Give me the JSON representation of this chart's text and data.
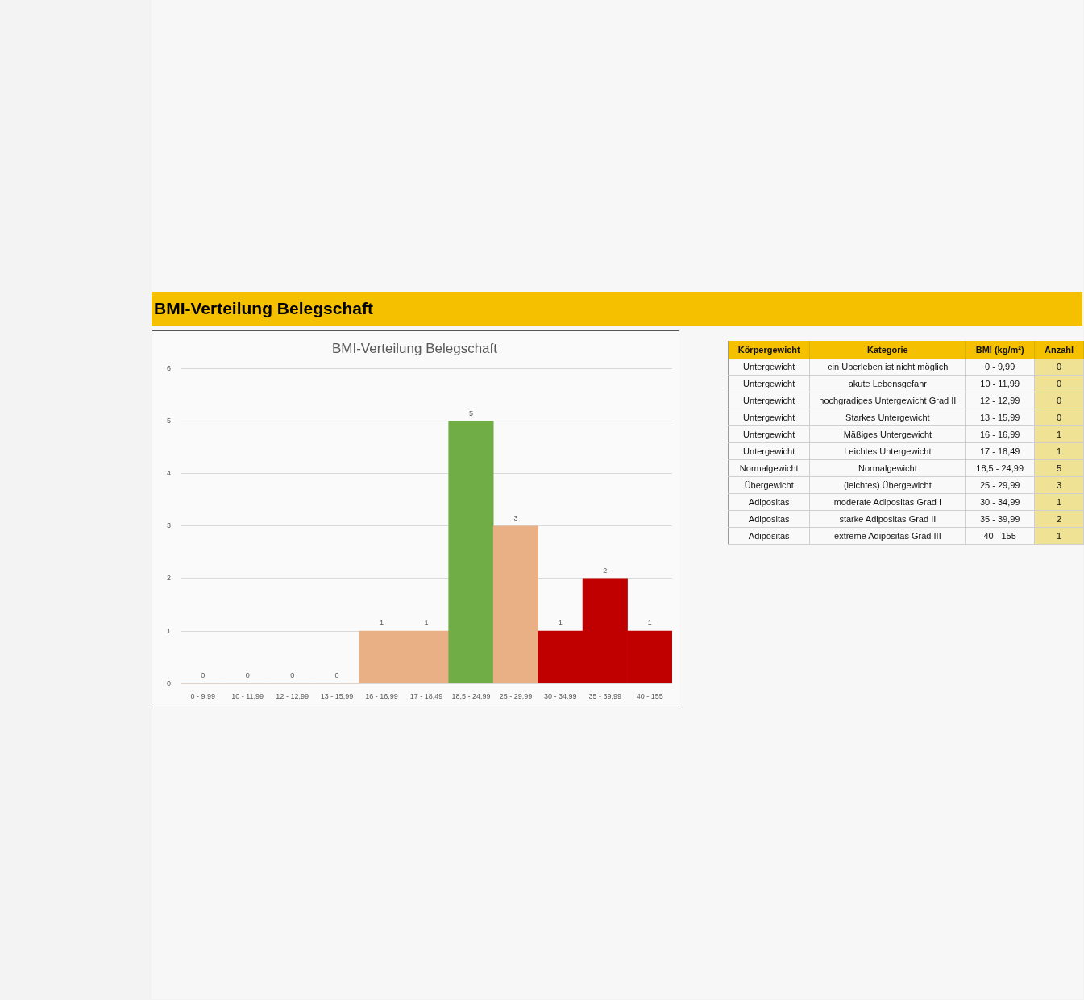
{
  "chart_data": [
    {
      "type": "other",
      "title": "BMI-Verteilung Belegschaft"
    },
    {
      "type": "bar",
      "title": "BMI-Verteilung Belegschaft",
      "categories": [
        "0 - 9,99",
        "10 - 11,99",
        "12 - 12,99",
        "13 - 15,99",
        "16 - 16,99",
        "17 - 18,49",
        "18,5 - 24,99",
        "25 - 29,99",
        "30 - 34,99",
        "35 - 39,99",
        "40 - 155"
      ],
      "values": [
        0,
        0,
        0,
        0,
        1,
        1,
        5,
        3,
        1,
        2,
        1
      ],
      "colors": [
        "#eab085",
        "#eab085",
        "#eab085",
        "#eab085",
        "#eab085",
        "#eab085",
        "#70ad47",
        "#eab085",
        "#c00000",
        "#c00000",
        "#c00000"
      ],
      "ylim": [
        0,
        6
      ],
      "yticks": [
        0,
        1,
        2,
        3,
        4,
        5,
        6
      ],
      "grid": "y",
      "data_labels": true
    },
    {
      "type": "other",
      "categories": [
        "Körpergewicht",
        "Kategorie",
        "BMI (kg/m²)",
        "Anzahl"
      ],
      "annotations": [
        "Untergewicht",
        "ein Überleben ist nicht möglich",
        "0 - 9,99",
        "0",
        "Untergewicht",
        "akute Lebensgefahr",
        "10 - 11,99",
        "0",
        "Untergewicht",
        "hochgradiges Untergewicht Grad II",
        "12 - 12,99",
        "0",
        "Untergewicht",
        "Starkes Untergewicht",
        "13 - 15,99",
        "0",
        "Untergewicht",
        "Mäßiges Untergewicht",
        "16 - 16,99",
        "1",
        "Untergewicht",
        "Leichtes Untergewicht",
        "17 - 18,49",
        "1",
        "Normalgewicht",
        "Normalgewicht",
        "18,5 - 24,99",
        "5",
        "Übergewicht",
        "(leichtes) Übergewicht",
        "25 - 29,99",
        "3",
        "Adipositas",
        "moderate Adipositas Grad I",
        "30 - 34,99",
        "1",
        "Adipositas",
        "starke Adipositas Grad II",
        "35 - 39,99",
        "2",
        "Adipositas",
        "extreme Adipositas Grad III",
        "40 - 155",
        "1"
      ]
    }
  ]
}
